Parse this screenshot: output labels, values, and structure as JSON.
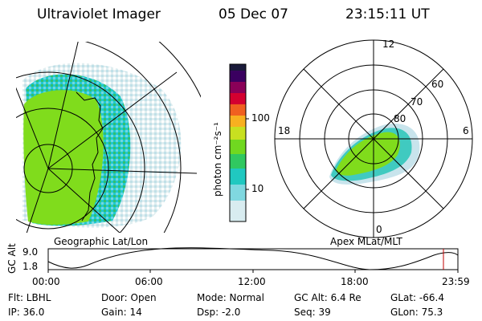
{
  "header": {
    "title": "Ultraviolet Imager",
    "date": "05 Dec 07",
    "time": "23:15:11 UT"
  },
  "panels": {
    "left_caption": "Geographic Lat/Lon",
    "right_caption": "Apex MLat/MLT"
  },
  "colorbar": {
    "label": "photon cm⁻²s⁻¹",
    "ticks": [
      "100",
      "10"
    ],
    "colors": [
      "#1a1a3a",
      "#3a0060",
      "#8a0058",
      "#d40030",
      "#f06020",
      "#f8b020",
      "#c8e020",
      "#70d820",
      "#30c860",
      "#20c8c0",
      "#80d8e0",
      "#d8ecf0"
    ]
  },
  "polar": {
    "mlt_labels": [
      "12",
      "18",
      "6",
      "0"
    ],
    "lat_labels": [
      "60",
      "70",
      "80"
    ]
  },
  "altitude": {
    "axis_label": "GC Alt",
    "ymax": "9.0",
    "ymin": "1.8",
    "x_ticks": [
      "00:00",
      "06:00",
      "12:00",
      "18:00",
      "23:59"
    ]
  },
  "status": {
    "flt": "Flt: LBHL",
    "ip": "IP: 36.0",
    "door": "Door: Open",
    "gain": "Gain: 14",
    "mode": "Mode: Normal",
    "dsp": "Dsp:    -2.0",
    "gcalt": "GC Alt: 6.4 Re",
    "seq": "Seq: 39",
    "glat": "GLat: -66.4",
    "glon": "GLon:  75.3"
  }
}
